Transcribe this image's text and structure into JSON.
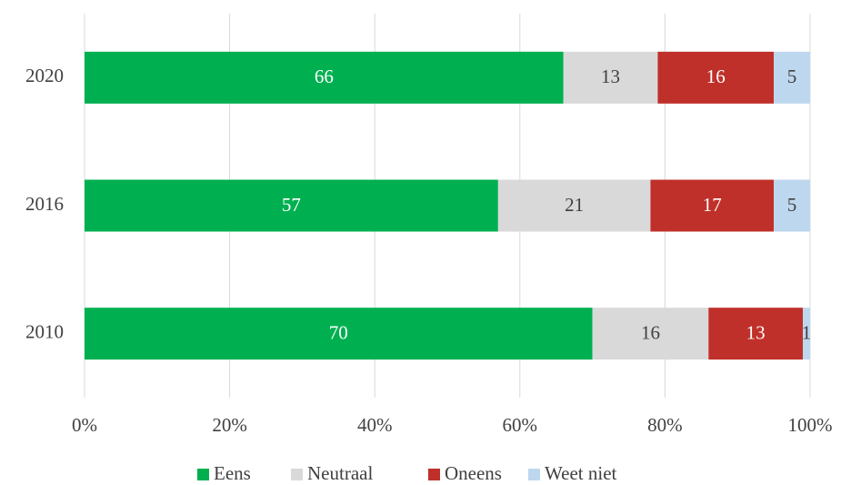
{
  "chart_data": {
    "type": "stacked-bar-horizontal",
    "categories": [
      "2020",
      "2016",
      "2010"
    ],
    "series": [
      {
        "name": "Eens",
        "color": "#00b050",
        "values": [
          66,
          57,
          70
        ]
      },
      {
        "name": "Neutraal",
        "color": "#d9d9d9",
        "values": [
          13,
          21,
          16
        ]
      },
      {
        "name": "Oneens",
        "color": "#c0302a",
        "values": [
          16,
          17,
          13
        ]
      },
      {
        "name": "Weet niet",
        "color": "#bdd7ee",
        "values": [
          5,
          5,
          1
        ]
      }
    ],
    "xlim": [
      0,
      100
    ],
    "xticks": [
      {
        "value": 0,
        "label": "0%"
      },
      {
        "value": 20,
        "label": "20%"
      },
      {
        "value": 40,
        "label": "40%"
      },
      {
        "value": 60,
        "label": "60%"
      },
      {
        "value": 80,
        "label": "80%"
      },
      {
        "value": 100,
        "label": "100%"
      }
    ],
    "grid": true,
    "legend": "bottom"
  }
}
